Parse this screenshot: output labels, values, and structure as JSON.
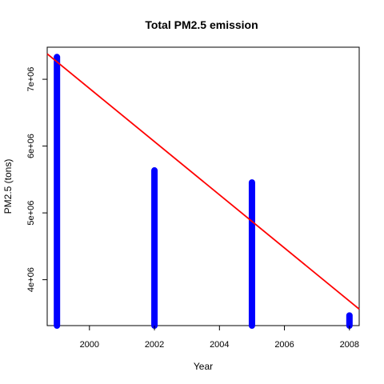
{
  "chart_data": {
    "type": "bar",
    "title": "Total PM2.5 emission",
    "xlabel": "Year",
    "ylabel": "PM2.5 (tons)",
    "x": [
      1999,
      2002,
      2005,
      2008
    ],
    "values": [
      7332967,
      5635780,
      5454703,
      3464206
    ],
    "bar_color": "#0000ff",
    "xlim": [
      1998.7,
      2008.3
    ],
    "ylim": [
      3313000,
      7480000
    ],
    "xticks": [
      2000,
      2002,
      2004,
      2006,
      2008
    ],
    "xtick_labels": [
      "2000",
      "2002",
      "2004",
      "2006",
      "2008"
    ],
    "yticks": [
      4000000,
      5000000,
      6000000,
      7000000
    ],
    "ytick_labels": [
      "4e+06",
      "5e+06",
      "6e+06",
      "7e+06"
    ],
    "trend_line": {
      "color": "#ff0000",
      "start": [
        1998.7,
        7380000
      ],
      "end": [
        2008.3,
        3560000
      ]
    },
    "grid": false,
    "legend": "none"
  }
}
